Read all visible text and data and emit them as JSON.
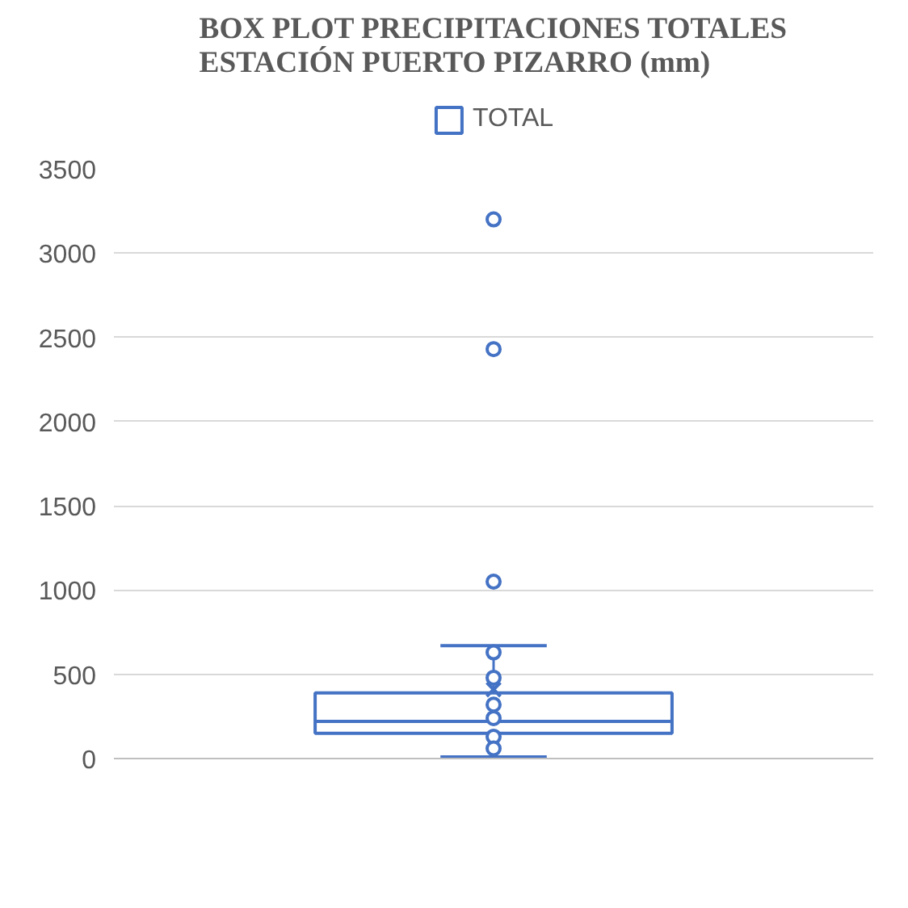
{
  "chart_data": {
    "type": "box",
    "title": "BOX PLOT PRECIPITACIONES TOTALES\nESTACIÓN PUERTO PIZARRO (mm)",
    "categories": [
      null
    ],
    "series": [
      {
        "name": "TOTAL",
        "color": "#4472c4",
        "boxes": [
          {
            "low": 10,
            "q1": 150,
            "median": 220,
            "q3": 390,
            "high": 670,
            "mean": 410,
            "outliers": [
              1050,
              2430,
              3200
            ]
          }
        ]
      },
      {
        "type": "scatter",
        "color": "#4472c4",
        "x": [
          null,
          null,
          null,
          null,
          null,
          null
        ],
        "values": [
          630,
          480,
          320,
          240,
          130,
          60
        ]
      }
    ],
    "ylim": [
      0,
      3500
    ],
    "yticks": [
      0,
      500,
      1000,
      1500,
      2000,
      2500,
      3000,
      3500
    ],
    "grid": "y",
    "legend": "top"
  }
}
